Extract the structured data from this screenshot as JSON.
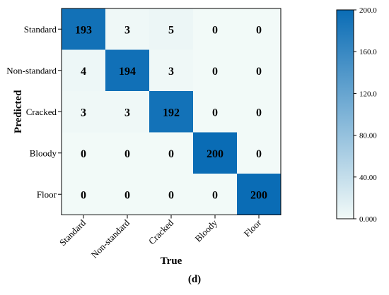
{
  "chart_data": {
    "type": "heatmap",
    "title": "",
    "xlabel": "True",
    "ylabel": "Predicted",
    "x_categories": [
      "Standard",
      "Non-standard",
      "Cracked",
      "Bloody",
      "Floor"
    ],
    "y_categories": [
      "Standard",
      "Non-standard",
      "Cracked",
      "Bloody",
      "Floor"
    ],
    "matrix": [
      [
        193,
        3,
        5,
        0,
        0
      ],
      [
        4,
        194,
        3,
        0,
        0
      ],
      [
        3,
        3,
        192,
        0,
        0
      ],
      [
        0,
        0,
        0,
        200,
        0
      ],
      [
        0,
        0,
        0,
        0,
        200
      ]
    ],
    "colorbar": {
      "min": 0,
      "max": 200,
      "tick_labels": [
        "0.000",
        "40.00",
        "80.00",
        "120.0",
        "160.0",
        "200.0"
      ],
      "tick_values": [
        0,
        40,
        80,
        120,
        160,
        200
      ],
      "low_color": "#f2faf8",
      "high_color": "#0a6cb5"
    }
  },
  "panel_label": "(d)"
}
